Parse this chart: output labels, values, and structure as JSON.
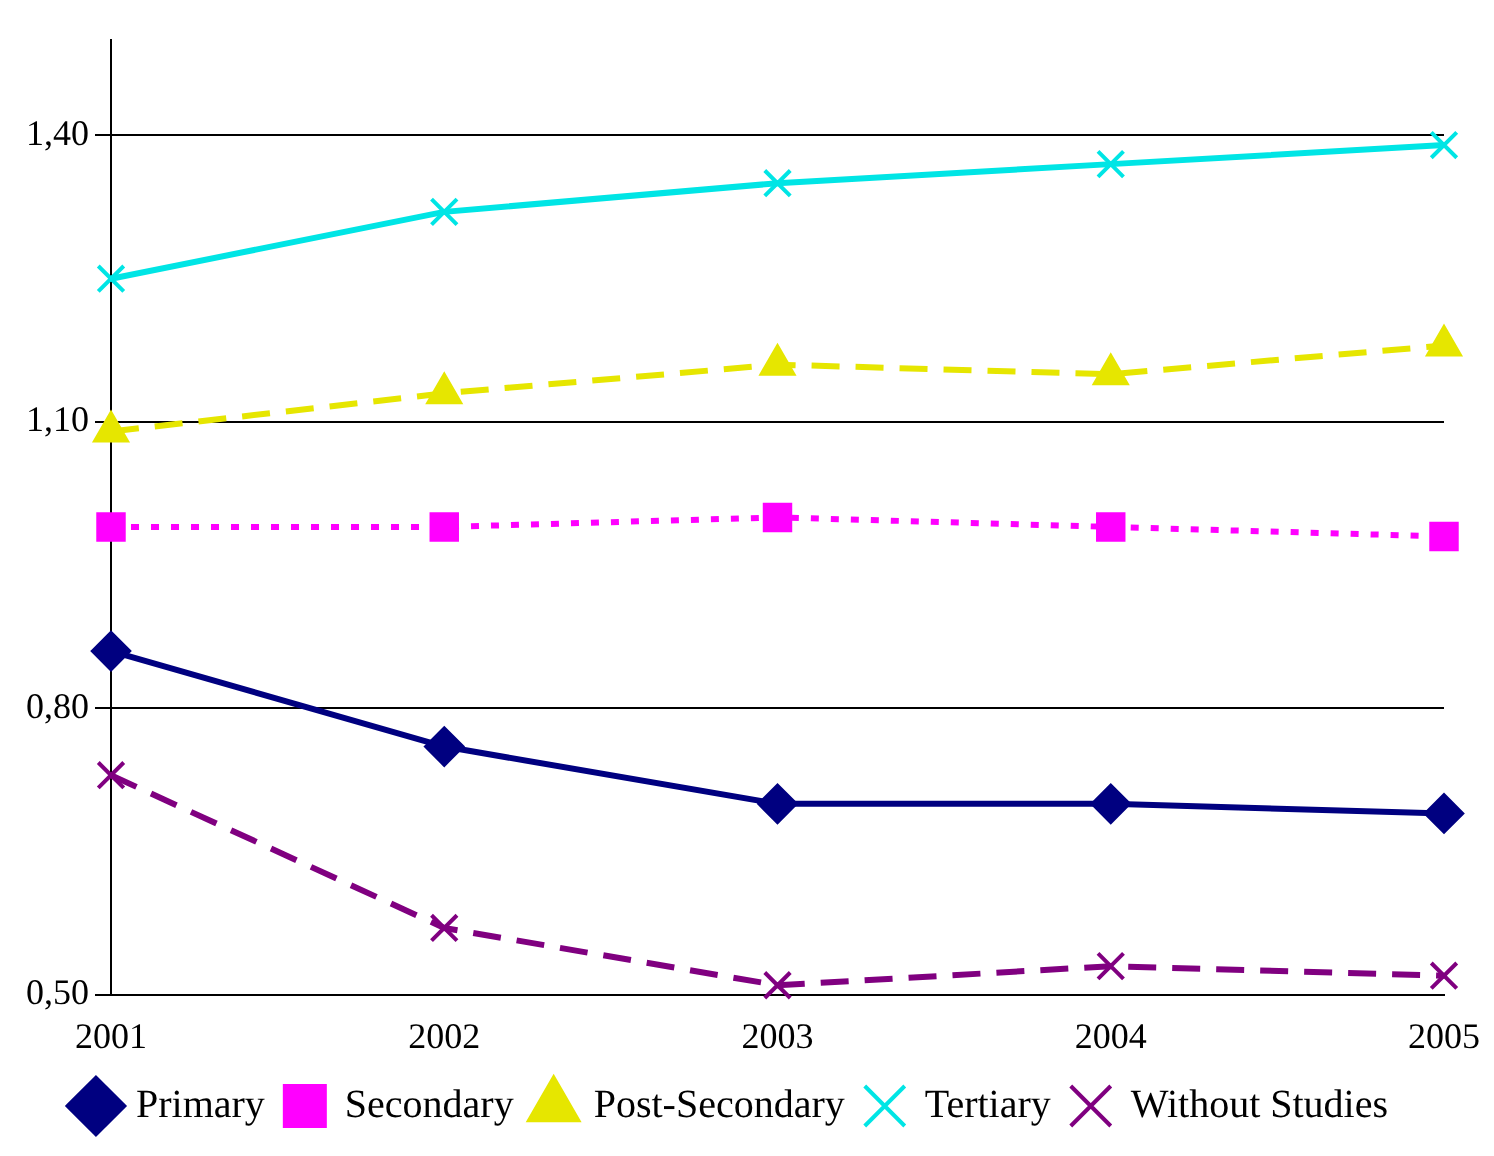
{
  "chart_data": {
    "type": "line",
    "categories": [
      "2001",
      "2002",
      "2003",
      "2004",
      "2005"
    ],
    "series": [
      {
        "name": "Primary",
        "color": "#000080",
        "marker": "diamond",
        "line_style": "solid",
        "values": [
          0.86,
          0.76,
          0.7,
          0.7,
          0.69
        ]
      },
      {
        "name": "Secondary",
        "color": "#ff00ff",
        "marker": "square",
        "line_style": "dotted",
        "values": [
          0.99,
          0.99,
          1.0,
          0.99,
          0.98
        ]
      },
      {
        "name": "Post-Secondary",
        "color": "#e6e600",
        "marker": "triangle",
        "line_style": "dashed",
        "values": [
          1.09,
          1.13,
          1.16,
          1.15,
          1.18
        ]
      },
      {
        "name": "Tertiary",
        "color": "#00e5e5",
        "marker": "cross",
        "line_style": "solid",
        "values": [
          1.25,
          1.32,
          1.35,
          1.37,
          1.39
        ]
      },
      {
        "name": "Without Studies",
        "color": "#800080",
        "marker": "cross",
        "line_style": "dashed",
        "values": [
          0.73,
          0.57,
          0.51,
          0.53,
          0.52
        ]
      }
    ],
    "ylim": [
      0.5,
      1.5
    ],
    "yticks": [
      {
        "value": 0.5,
        "label": "0,50"
      },
      {
        "value": 0.8,
        "label": "0,80"
      },
      {
        "value": 1.1,
        "label": "1,10"
      },
      {
        "value": 1.4,
        "label": "1,40"
      }
    ],
    "grid": "y",
    "legend": "bottom"
  }
}
